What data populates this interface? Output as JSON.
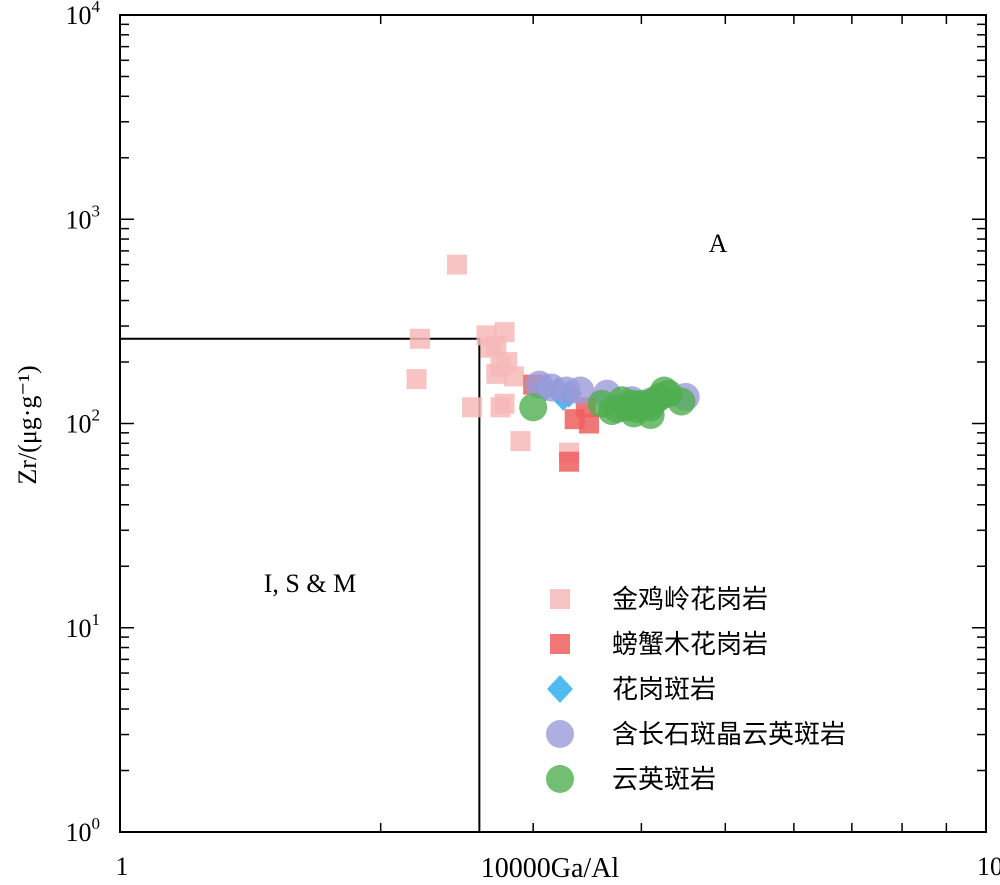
{
  "chart_data": {
    "type": "scatter",
    "xlabel": "10000Ga/Al",
    "ylabel": "Zr/(μg·g⁻¹)",
    "xscale": "log",
    "yscale": "log",
    "xlim": [
      1,
      10
    ],
    "ylim": [
      1,
      10000
    ],
    "x_tick_labels": [
      "1",
      "10"
    ],
    "y_ticks": [
      {
        "base": "10",
        "exp": "0"
      },
      {
        "base": "10",
        "exp": "1"
      },
      {
        "base": "10",
        "exp": "2"
      },
      {
        "base": "10",
        "exp": "3"
      },
      {
        "base": "10",
        "exp": "4"
      }
    ],
    "boundary": {
      "x": 2.6,
      "y": 260
    },
    "field_labels": {
      "A": "A",
      "ISM": "I, S & M"
    },
    "legend_position": "bottom-right",
    "series": [
      {
        "name": "金鸡岭花岗岩",
        "marker": "square",
        "color": "#f7b8b8",
        "points": [
          [
            2.45,
            600
          ],
          [
            2.22,
            260
          ],
          [
            2.2,
            165
          ],
          [
            2.55,
            120
          ],
          [
            2.65,
            270
          ],
          [
            2.68,
            235
          ],
          [
            2.72,
            240
          ],
          [
            2.78,
            280
          ],
          [
            2.75,
            190
          ],
          [
            2.72,
            175
          ],
          [
            2.8,
            200
          ],
          [
            2.85,
            170
          ],
          [
            2.75,
            120
          ],
          [
            2.78,
            125
          ],
          [
            2.9,
            82
          ],
          [
            3.3,
            72
          ]
        ]
      },
      {
        "name": "螃蟹木花岗岩",
        "marker": "square",
        "color": "#ef5f5f",
        "points": [
          [
            3.0,
            155
          ],
          [
            3.35,
            105
          ],
          [
            3.48,
            100
          ],
          [
            3.45,
            120
          ],
          [
            3.3,
            65
          ]
        ]
      },
      {
        "name": "花岗斑岩",
        "marker": "diamond",
        "color": "#3cb4f0",
        "points": [
          [
            3.1,
            150
          ],
          [
            3.2,
            145
          ],
          [
            3.25,
            135
          ],
          [
            3.3,
            140
          ]
        ]
      },
      {
        "name": "含长石斑晶云英斑岩",
        "marker": "circle",
        "color": "#9a9ad8",
        "points": [
          [
            3.05,
            155
          ],
          [
            3.15,
            150
          ],
          [
            3.28,
            145
          ],
          [
            3.4,
            145
          ],
          [
            3.65,
            140
          ],
          [
            4.5,
            135
          ],
          [
            3.9,
            130
          ],
          [
            4.1,
            128
          ]
        ]
      },
      {
        "name": "云英斑岩",
        "marker": "circle",
        "color": "#4fae4f",
        "points": [
          [
            3.0,
            120
          ],
          [
            3.6,
            125
          ],
          [
            3.7,
            115
          ],
          [
            3.75,
            118
          ],
          [
            3.8,
            130
          ],
          [
            3.85,
            120
          ],
          [
            3.9,
            125
          ],
          [
            3.92,
            112
          ],
          [
            3.95,
            118
          ],
          [
            4.0,
            125
          ],
          [
            4.05,
            122
          ],
          [
            4.1,
            120
          ],
          [
            4.15,
            130
          ],
          [
            4.2,
            135
          ],
          [
            4.25,
            145
          ],
          [
            4.3,
            140
          ],
          [
            4.1,
            110
          ],
          [
            4.45,
            128
          ]
        ]
      }
    ]
  }
}
